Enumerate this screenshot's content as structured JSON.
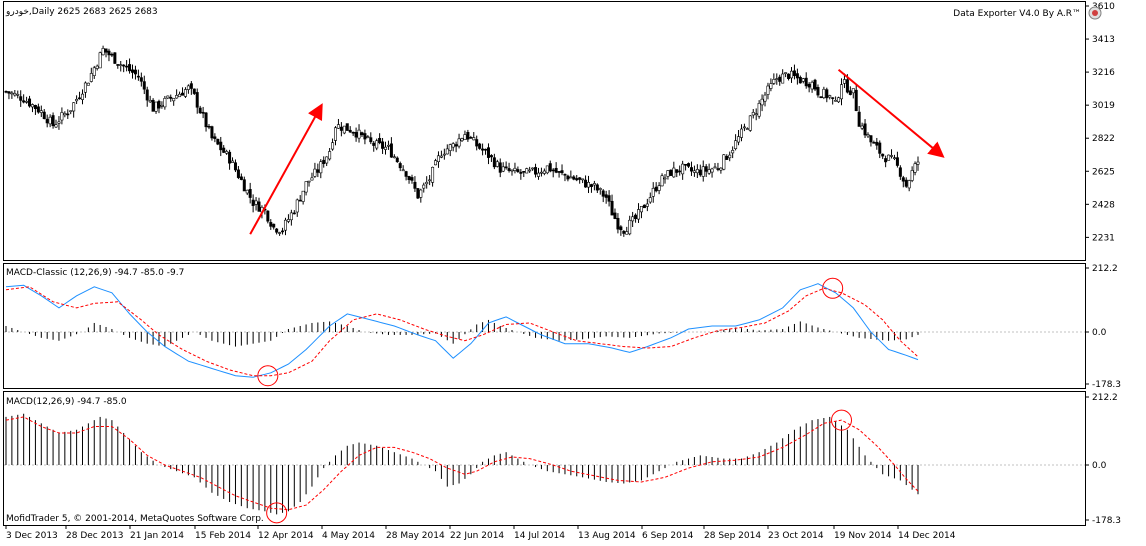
{
  "colors": {
    "background": "#ffffff",
    "border": "#000000",
    "grid_zero": "#c0c0c0",
    "arrow": "#ff0000",
    "signal": "#ff0000",
    "macd_line": "#1e90ff",
    "histogram": "#000000",
    "marker": "#ff0000"
  },
  "top_right_label": "Data Exporter V4.0 By A.R™",
  "top_right_icon": "exporter-icon",
  "copyright": "MofidTrader 5, © 2001-2014, MetaQuotes Software Corp.",
  "chart_data": [
    {
      "type": "candlestick",
      "title": "خودرو,Daily  2625 2683 2625 2683",
      "symbol": "خودرو",
      "timeframe": "Daily",
      "ohlc_last": [
        2625,
        2683,
        2625,
        2683
      ],
      "y_ticks": [
        "3610",
        "3413",
        "3216",
        "3019",
        "2822",
        "2625",
        "2428",
        "2231"
      ],
      "ylim": [
        2120,
        3610
      ],
      "x_ticks": [
        "3 Dec 2013",
        "28 Dec 2013",
        "21 Jan 2014",
        "15 Feb 2014",
        "12 Apr 2014",
        "4 May 2014",
        "28 May 2014",
        "22 Jun 2014",
        "14 Jul 2014",
        "13 Aug 2014",
        "6 Sep 2014",
        "28 Sep 2014",
        "23 Oct 2014",
        "19 Nov 2014",
        "14 Dec 2014"
      ],
      "close_path": [
        [
          0,
          3100
        ],
        [
          6,
          3060
        ],
        [
          12,
          2980
        ],
        [
          16,
          2900
        ],
        [
          22,
          3000
        ],
        [
          28,
          3170
        ],
        [
          33,
          3350
        ],
        [
          40,
          3250
        ],
        [
          45,
          3190
        ],
        [
          50,
          3000
        ],
        [
          56,
          3060
        ],
        [
          62,
          3120
        ],
        [
          64,
          3070
        ],
        [
          70,
          2820
        ],
        [
          76,
          2700
        ],
        [
          80,
          2570
        ],
        [
          84,
          2440
        ],
        [
          88,
          2390
        ],
        [
          91,
          2290
        ],
        [
          94,
          2280
        ],
        [
          98,
          2400
        ],
        [
          102,
          2550
        ],
        [
          106,
          2630
        ],
        [
          110,
          2750
        ],
        [
          112,
          2900
        ],
        [
          118,
          2870
        ],
        [
          124,
          2790
        ],
        [
          130,
          2760
        ],
        [
          136,
          2620
        ],
        [
          140,
          2480
        ],
        [
          144,
          2580
        ],
        [
          148,
          2740
        ],
        [
          152,
          2780
        ],
        [
          156,
          2850
        ],
        [
          160,
          2780
        ],
        [
          164,
          2720
        ],
        [
          168,
          2640
        ],
        [
          172,
          2620
        ],
        [
          176,
          2610
        ],
        [
          180,
          2620
        ],
        [
          184,
          2650
        ],
        [
          188,
          2610
        ],
        [
          192,
          2590
        ],
        [
          196,
          2560
        ],
        [
          200,
          2530
        ],
        [
          204,
          2470
        ],
        [
          206,
          2380
        ],
        [
          208,
          2310
        ],
        [
          210,
          2280
        ],
        [
          214,
          2340
        ],
        [
          218,
          2450
        ],
        [
          222,
          2560
        ],
        [
          226,
          2620
        ],
        [
          230,
          2640
        ],
        [
          234,
          2620
        ],
        [
          238,
          2630
        ],
        [
          242,
          2650
        ],
        [
          246,
          2740
        ],
        [
          250,
          2850
        ],
        [
          254,
          2960
        ],
        [
          258,
          3080
        ],
        [
          262,
          3180
        ],
        [
          266,
          3200
        ],
        [
          270,
          3170
        ],
        [
          274,
          3150
        ],
        [
          276,
          3100
        ],
        [
          280,
          3070
        ],
        [
          282,
          3020
        ],
        [
          284,
          3160
        ],
        [
          288,
          3090
        ],
        [
          290,
          2920
        ],
        [
          294,
          2800
        ],
        [
          298,
          2720
        ],
        [
          302,
          2680
        ],
        [
          304,
          2620
        ],
        [
          306,
          2540
        ],
        [
          308,
          2620
        ],
        [
          310,
          2683
        ]
      ]
    },
    {
      "type": "macd",
      "title": "MACD-Classic (12,26,9) -94.7 -85.0 -9.7",
      "y_ticks": [
        "212.2",
        "0.0",
        "-178.3"
      ],
      "ylim": [
        -178.3,
        212.2
      ],
      "histogram": [
        [
          0,
          20
        ],
        [
          6,
          0
        ],
        [
          12,
          -20
        ],
        [
          18,
          -30
        ],
        [
          26,
          0
        ],
        [
          30,
          30
        ],
        [
          36,
          10
        ],
        [
          42,
          -20
        ],
        [
          48,
          -40
        ],
        [
          54,
          -50
        ],
        [
          60,
          -20
        ],
        [
          64,
          0
        ],
        [
          70,
          -30
        ],
        [
          78,
          -50
        ],
        [
          84,
          -40
        ],
        [
          90,
          -30
        ],
        [
          96,
          10
        ],
        [
          104,
          30
        ],
        [
          110,
          35
        ],
        [
          116,
          20
        ],
        [
          122,
          0
        ],
        [
          130,
          -10
        ],
        [
          138,
          -10
        ],
        [
          146,
          -5
        ],
        [
          152,
          -40
        ],
        [
          160,
          25
        ],
        [
          164,
          40
        ],
        [
          168,
          20
        ],
        [
          174,
          0
        ],
        [
          180,
          -20
        ],
        [
          188,
          -30
        ],
        [
          196,
          -25
        ],
        [
          204,
          -15
        ],
        [
          212,
          -20
        ],
        [
          222,
          -5
        ],
        [
          232,
          0
        ],
        [
          240,
          0
        ],
        [
          248,
          15
        ],
        [
          256,
          5
        ],
        [
          264,
          10
        ],
        [
          270,
          35
        ],
        [
          276,
          15
        ],
        [
          282,
          0
        ],
        [
          290,
          -20
        ],
        [
          300,
          -30
        ],
        [
          306,
          -25
        ],
        [
          310,
          -10
        ]
      ],
      "macd_path": [
        [
          0,
          150
        ],
        [
          6,
          155
        ],
        [
          12,
          120
        ],
        [
          18,
          80
        ],
        [
          24,
          120
        ],
        [
          30,
          150
        ],
        [
          36,
          130
        ],
        [
          42,
          60
        ],
        [
          48,
          0
        ],
        [
          54,
          -50
        ],
        [
          62,
          -100
        ],
        [
          70,
          -125
        ],
        [
          78,
          -150
        ],
        [
          84,
          -155
        ],
        [
          90,
          -140
        ],
        [
          96,
          -110
        ],
        [
          102,
          -60
        ],
        [
          110,
          20
        ],
        [
          116,
          60
        ],
        [
          124,
          40
        ],
        [
          132,
          20
        ],
        [
          140,
          -10
        ],
        [
          146,
          -30
        ],
        [
          152,
          -90
        ],
        [
          158,
          -40
        ],
        [
          164,
          30
        ],
        [
          170,
          50
        ],
        [
          176,
          20
        ],
        [
          182,
          -10
        ],
        [
          190,
          -40
        ],
        [
          198,
          -40
        ],
        [
          206,
          -55
        ],
        [
          212,
          -70
        ],
        [
          218,
          -50
        ],
        [
          226,
          -20
        ],
        [
          232,
          10
        ],
        [
          240,
          20
        ],
        [
          248,
          20
        ],
        [
          256,
          40
        ],
        [
          264,
          80
        ],
        [
          270,
          140
        ],
        [
          276,
          160
        ],
        [
          282,
          130
        ],
        [
          288,
          80
        ],
        [
          294,
          0
        ],
        [
          300,
          -60
        ],
        [
          306,
          -80
        ],
        [
          310,
          -94.7
        ]
      ],
      "signal_path": [
        [
          0,
          140
        ],
        [
          8,
          150
        ],
        [
          16,
          100
        ],
        [
          24,
          80
        ],
        [
          30,
          95
        ],
        [
          38,
          100
        ],
        [
          46,
          40
        ],
        [
          52,
          -10
        ],
        [
          60,
          -60
        ],
        [
          68,
          -100
        ],
        [
          76,
          -130
        ],
        [
          84,
          -150
        ],
        [
          90,
          -150
        ],
        [
          96,
          -140
        ],
        [
          104,
          -100
        ],
        [
          110,
          -30
        ],
        [
          118,
          40
        ],
        [
          126,
          60
        ],
        [
          134,
          40
        ],
        [
          142,
          10
        ],
        [
          150,
          -15
        ],
        [
          156,
          -30
        ],
        [
          162,
          -10
        ],
        [
          170,
          25
        ],
        [
          178,
          30
        ],
        [
          186,
          0
        ],
        [
          194,
          -30
        ],
        [
          202,
          -40
        ],
        [
          210,
          -50
        ],
        [
          218,
          -55
        ],
        [
          226,
          -50
        ],
        [
          234,
          -20
        ],
        [
          242,
          5
        ],
        [
          250,
          15
        ],
        [
          258,
          30
        ],
        [
          266,
          70
        ],
        [
          272,
          120
        ],
        [
          278,
          145
        ],
        [
          284,
          130
        ],
        [
          292,
          90
        ],
        [
          298,
          40
        ],
        [
          304,
          -30
        ],
        [
          310,
          -85
        ]
      ]
    },
    {
      "type": "macd",
      "title": "MACD(12,26,9) -94.7 -85.0",
      "y_ticks": [
        "212.2",
        "0.0",
        "-178.3"
      ],
      "ylim": [
        -178.3,
        212.2
      ],
      "histogram": [
        [
          0,
          150
        ],
        [
          6,
          160
        ],
        [
          12,
          130
        ],
        [
          18,
          100
        ],
        [
          24,
          110
        ],
        [
          28,
          130
        ],
        [
          32,
          150
        ],
        [
          36,
          140
        ],
        [
          40,
          100
        ],
        [
          46,
          40
        ],
        [
          52,
          0
        ],
        [
          58,
          -20
        ],
        [
          64,
          -40
        ],
        [
          70,
          -90
        ],
        [
          76,
          -120
        ],
        [
          82,
          -140
        ],
        [
          88,
          -150
        ],
        [
          92,
          -160
        ],
        [
          96,
          -150
        ],
        [
          100,
          -120
        ],
        [
          104,
          -70
        ],
        [
          108,
          -10
        ],
        [
          112,
          30
        ],
        [
          116,
          60
        ],
        [
          120,
          70
        ],
        [
          126,
          60
        ],
        [
          132,
          40
        ],
        [
          138,
          20
        ],
        [
          142,
          0
        ],
        [
          146,
          -20
        ],
        [
          150,
          -70
        ],
        [
          154,
          -60
        ],
        [
          158,
          -30
        ],
        [
          162,
          10
        ],
        [
          166,
          30
        ],
        [
          170,
          40
        ],
        [
          174,
          20
        ],
        [
          178,
          0
        ],
        [
          184,
          -20
        ],
        [
          190,
          -30
        ],
        [
          196,
          -40
        ],
        [
          204,
          -55
        ],
        [
          210,
          -60
        ],
        [
          216,
          -50
        ],
        [
          222,
          -20
        ],
        [
          228,
          10
        ],
        [
          236,
          30
        ],
        [
          244,
          20
        ],
        [
          250,
          20
        ],
        [
          256,
          40
        ],
        [
          262,
          70
        ],
        [
          268,
          110
        ],
        [
          274,
          140
        ],
        [
          280,
          150
        ],
        [
          286,
          110
        ],
        [
          292,
          30
        ],
        [
          298,
          -30
        ],
        [
          304,
          -50
        ],
        [
          308,
          -80
        ],
        [
          310,
          -94.7
        ]
      ],
      "signal_path": [
        [
          0,
          140
        ],
        [
          6,
          150
        ],
        [
          12,
          120
        ],
        [
          18,
          100
        ],
        [
          24,
          100
        ],
        [
          30,
          120
        ],
        [
          36,
          120
        ],
        [
          42,
          80
        ],
        [
          48,
          30
        ],
        [
          54,
          0
        ],
        [
          60,
          -20
        ],
        [
          66,
          -40
        ],
        [
          72,
          -70
        ],
        [
          78,
          -100
        ],
        [
          84,
          -120
        ],
        [
          90,
          -140
        ],
        [
          96,
          -145
        ],
        [
          102,
          -130
        ],
        [
          108,
          -80
        ],
        [
          114,
          -20
        ],
        [
          120,
          30
        ],
        [
          126,
          55
        ],
        [
          132,
          55
        ],
        [
          138,
          40
        ],
        [
          144,
          20
        ],
        [
          150,
          -10
        ],
        [
          156,
          -30
        ],
        [
          160,
          -20
        ],
        [
          166,
          10
        ],
        [
          172,
          25
        ],
        [
          178,
          20
        ],
        [
          186,
          0
        ],
        [
          192,
          -20
        ],
        [
          200,
          -35
        ],
        [
          208,
          -50
        ],
        [
          216,
          -55
        ],
        [
          224,
          -40
        ],
        [
          232,
          -10
        ],
        [
          240,
          10
        ],
        [
          248,
          15
        ],
        [
          256,
          25
        ],
        [
          264,
          55
        ],
        [
          272,
          95
        ],
        [
          278,
          130
        ],
        [
          284,
          140
        ],
        [
          290,
          110
        ],
        [
          296,
          60
        ],
        [
          302,
          0
        ],
        [
          306,
          -45
        ],
        [
          310,
          -85
        ]
      ]
    }
  ]
}
